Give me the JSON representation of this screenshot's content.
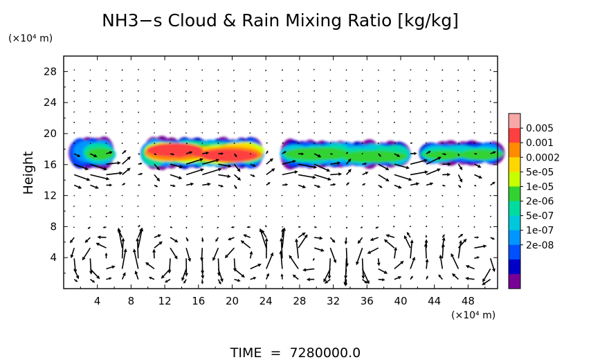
{
  "chart_data": {
    "type": "heatmap",
    "title": "NH3−s Cloud & Rain Mixing Ratio [kg/kg]",
    "ylabel": "Height",
    "xlabel": "",
    "y_unit": "(×10⁴ m)",
    "x_unit": "(×10⁴ m)",
    "footer": "TIME  =  7280000.0",
    "xlim": [
      0,
      51.5
    ],
    "ylim": [
      0,
      30
    ],
    "x_ticks": [
      4,
      8,
      12,
      16,
      20,
      24,
      28,
      32,
      36,
      40,
      44,
      48
    ],
    "y_ticks": [
      4,
      8,
      12,
      16,
      20,
      24,
      28
    ],
    "colorbar": {
      "labels": [
        "0.005",
        "0.001",
        "0.0002",
        "5e-05",
        "1e-05",
        "2e-06",
        "5e-07",
        "1e-07",
        "2e-08"
      ],
      "colors_top_to_bottom": [
        "#f7a8a8",
        "#ff4040",
        "#ff8c00",
        "#ffd700",
        "#c8ff00",
        "#32d232",
        "#00dca0",
        "#00c8dc",
        "#0096ff",
        "#0050ff",
        "#0000c8",
        "#780096"
      ]
    },
    "cloud_layers": [
      {
        "x_range": [
          0,
          5.5
        ],
        "y_range": [
          15.5,
          19.5
        ],
        "peak": "2e-05"
      },
      {
        "x_range": [
          10,
          23
        ],
        "y_range": [
          15.5,
          19.5
        ],
        "peak": "0.001"
      },
      {
        "x_range": [
          26.5,
          40.5
        ],
        "y_range": [
          15.5,
          19.2
        ],
        "peak": "1e-05"
      },
      {
        "x_range": [
          43,
          51.5
        ],
        "y_range": [
          16,
          19
        ],
        "peak": "1e-05"
      }
    ],
    "grid": false
  }
}
